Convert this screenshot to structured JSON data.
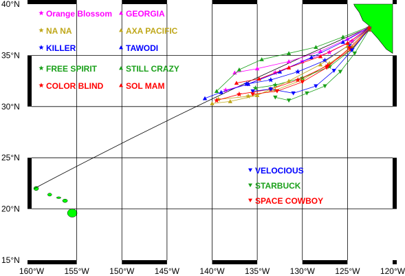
{
  "map": {
    "type": "track map",
    "lon_range": [
      -160,
      -120
    ],
    "lat_range": [
      15,
      40
    ],
    "x_ticks": [
      "160°W",
      "155°W",
      "150°W",
      "145°W",
      "140°W",
      "135°W",
      "130°W",
      "125°W",
      "120°W"
    ],
    "y_ticks": [
      "15°N",
      "20°N",
      "25°N",
      "30°N",
      "35°N",
      "40°N"
    ],
    "x_tick_values": [
      -160,
      -155,
      -150,
      -145,
      -140,
      -135,
      -130,
      -125,
      -120
    ],
    "y_tick_values": [
      15,
      20,
      25,
      30,
      35,
      40
    ],
    "land_color": "#00ff00",
    "great_circle": {
      "from": [
        -122.4,
        37.8
      ],
      "to": [
        -159.7,
        22.0
      ],
      "apex_lat": 30.3
    },
    "islands": [
      {
        "name": "Kauai",
        "lon": -159.5,
        "lat": 22.0
      },
      {
        "name": "Oahu",
        "lon": -158.0,
        "lat": 21.4
      },
      {
        "name": "Molokai",
        "lon": -157.0,
        "lat": 21.1
      },
      {
        "name": "Maui",
        "lon": -156.3,
        "lat": 20.8
      },
      {
        "name": "Hawaii",
        "lon": -155.5,
        "lat": 19.6
      }
    ]
  },
  "legend": [
    {
      "label": "Orange Blossom",
      "color": "#ff00ff",
      "symbol": "star"
    },
    {
      "label": "NA NA",
      "color": "#bfa71a",
      "symbol": "star"
    },
    {
      "label": "KILLER",
      "color": "#0000ff",
      "symbol": "star"
    },
    {
      "label": "FREE SPIRIT",
      "color": "#1aa01a",
      "symbol": "star"
    },
    {
      "label": "COLOR BLIND",
      "color": "#ff0000",
      "symbol": "star"
    },
    {
      "label": "GEORGIA",
      "color": "#ff00ff",
      "symbol": "triangle-up"
    },
    {
      "label": "AXA PACIFIC",
      "color": "#bfa71a",
      "symbol": "triangle-up"
    },
    {
      "label": "TAWODI",
      "color": "#0000ff",
      "symbol": "triangle-up"
    },
    {
      "label": "STILL CRAZY",
      "color": "#1aa01a",
      "symbol": "triangle-up"
    },
    {
      "label": "SOL MAM",
      "color": "#ff0000",
      "symbol": "triangle-up"
    },
    {
      "label": "VELOCIOUS",
      "color": "#0000ff",
      "symbol": "triangle-down"
    },
    {
      "label": "STARBUCK",
      "color": "#1aa01a",
      "symbol": "triangle-down"
    },
    {
      "label": "SPACE COWBOY",
      "color": "#ff0000",
      "symbol": "triangle-down"
    }
  ],
  "tracks": [
    {
      "boat": "Orange Blossom",
      "color": "#ff00ff",
      "symbol": "star",
      "points": [
        [
          -122.6,
          37.7
        ],
        [
          -124.5,
          36.4
        ],
        [
          -127,
          35.3
        ],
        [
          -130,
          34.4
        ],
        [
          -133,
          33.3
        ],
        [
          -136,
          32.2
        ],
        [
          -138.5,
          31.6
        ]
      ]
    },
    {
      "boat": "NA NA",
      "color": "#bfa71a",
      "symbol": "star",
      "points": [
        [
          -122.6,
          37.6
        ],
        [
          -124.5,
          35.8
        ],
        [
          -127,
          34.2
        ],
        [
          -130,
          32.6
        ],
        [
          -133,
          31.6
        ],
        [
          -136,
          31.0
        ],
        [
          -139.3,
          30.7
        ]
      ]
    },
    {
      "boat": "KILLER",
      "color": "#0000ff",
      "symbol": "star",
      "points": [
        [
          -122.6,
          37.7
        ],
        [
          -124.8,
          36.0
        ],
        [
          -127.5,
          34.5
        ],
        [
          -130.5,
          33.4
        ],
        [
          -133.5,
          32.6
        ],
        [
          -136.2,
          32.2
        ]
      ]
    },
    {
      "boat": "FREE SPIRIT",
      "color": "#1aa01a",
      "symbol": "star",
      "points": [
        [
          -122.6,
          37.6
        ],
        [
          -124.5,
          35.6
        ],
        [
          -127,
          33.9
        ],
        [
          -130,
          32.8
        ],
        [
          -133,
          32.1
        ],
        [
          -135.2,
          31.8
        ]
      ]
    },
    {
      "boat": "COLOR BLIND",
      "color": "#ff0000",
      "symbol": "star",
      "points": [
        [
          -122.6,
          37.5
        ],
        [
          -124.6,
          35.6
        ],
        [
          -127.2,
          34.0
        ],
        [
          -130.5,
          32.6
        ],
        [
          -133.5,
          31.7
        ],
        [
          -137,
          31.2
        ],
        [
          -139.5,
          30.6
        ]
      ]
    },
    {
      "boat": "GEORGIA",
      "color": "#ff00ff",
      "symbol": "triangle-up",
      "points": [
        [
          -122.6,
          37.8
        ],
        [
          -125,
          36.6
        ],
        [
          -128,
          35.4
        ],
        [
          -131.5,
          34.4
        ],
        [
          -135,
          33.7
        ],
        [
          -137.5,
          33.3
        ]
      ]
    },
    {
      "boat": "AXA PACIFIC",
      "color": "#bfa71a",
      "symbol": "triangle-up",
      "points": [
        [
          -122.6,
          37.6
        ],
        [
          -125,
          35.9
        ],
        [
          -128,
          34.1
        ],
        [
          -131.5,
          32.5
        ],
        [
          -135,
          31.1
        ],
        [
          -138,
          30.5
        ],
        [
          -140,
          30.3
        ]
      ]
    },
    {
      "boat": "TAWODI",
      "color": "#0000ff",
      "symbol": "triangle-up",
      "points": [
        [
          -122.6,
          37.7
        ],
        [
          -125.5,
          36.3
        ],
        [
          -129,
          34.8
        ],
        [
          -132.5,
          33.4
        ],
        [
          -136,
          32.2
        ],
        [
          -139,
          31.4
        ],
        [
          -140.8,
          30.8
        ]
      ]
    },
    {
      "boat": "STILL CRAZY",
      "color": "#1aa01a",
      "symbol": "triangle-up",
      "points": [
        [
          -122.6,
          37.8
        ],
        [
          -125.5,
          36.8
        ],
        [
          -128.5,
          35.8
        ],
        [
          -131.5,
          35.2
        ],
        [
          -134.5,
          34.6
        ],
        [
          -137,
          33.6
        ],
        [
          -139.5,
          31.5
        ]
      ]
    },
    {
      "boat": "SOL MAM",
      "color": "#ff0000",
      "symbol": "triangle-up",
      "points": [
        [
          -122.6,
          37.7
        ],
        [
          -125,
          36.2
        ],
        [
          -128,
          34.9
        ],
        [
          -131.5,
          33.8
        ],
        [
          -134.8,
          32.7
        ],
        [
          -137.3,
          32.3
        ]
      ]
    },
    {
      "boat": "VELOCIOUS",
      "color": "#0000ff",
      "symbol": "triangle-down",
      "points": [
        [
          -122.6,
          37.6
        ],
        [
          -124.5,
          35.5
        ],
        [
          -126.5,
          33.5
        ],
        [
          -128.5,
          32.0
        ],
        [
          -131,
          31.3
        ],
        [
          -133.5,
          31.7
        ],
        [
          -135.5,
          31.5
        ]
      ]
    },
    {
      "boat": "STARBUCK",
      "color": "#1aa01a",
      "symbol": "triangle-down",
      "points": [
        [
          -122.6,
          37.5
        ],
        [
          -124.2,
          35.2
        ],
        [
          -125.8,
          33.4
        ],
        [
          -127.5,
          32.0
        ],
        [
          -129.5,
          31.3
        ],
        [
          -131.5,
          30.6
        ],
        [
          -133,
          30.9
        ]
      ]
    },
    {
      "boat": "SPACE COWBOY",
      "color": "#ff0000",
      "symbol": "triangle-down",
      "points": [
        [
          -122.6,
          37.6
        ],
        [
          -124.8,
          35.7
        ],
        [
          -127.3,
          33.8
        ],
        [
          -130,
          32.4
        ],
        [
          -132.8,
          31.5
        ],
        [
          -135.5,
          31.2
        ]
      ]
    }
  ]
}
